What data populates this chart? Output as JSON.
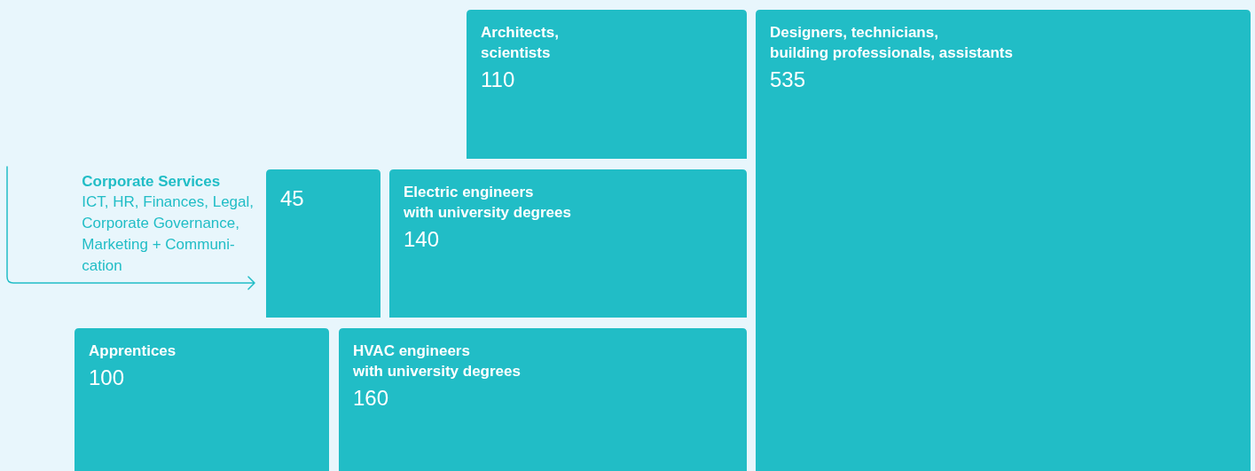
{
  "chart_data": {
    "type": "other",
    "categories": [
      "Architects,\nscientists",
      "Designers, technicians,\nbuilding professionals, assistants",
      "Corporate Services",
      "Electric engineers\nwith university degrees",
      "Apprentices",
      "HVAC engineers\nwith university degrees"
    ],
    "values": [
      110,
      535,
      45,
      140,
      100,
      160
    ],
    "color": "#21bdc6",
    "data_labels": true,
    "annotations": [
      "ICT, HR, Finances, Legal,\nCorporate Governance,\nMarketing + Communi-\ncation"
    ]
  }
}
